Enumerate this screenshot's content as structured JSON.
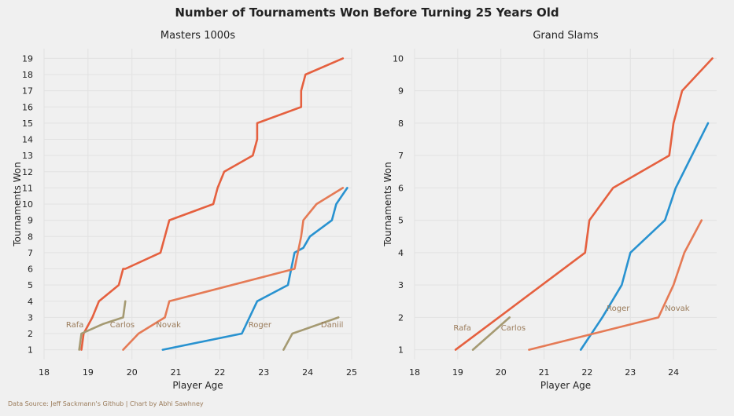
{
  "title": "Number of Tournaments Won Before Turning 25 Years Old",
  "source": "Data Source: Jeff Sackmann's Github | Chart by Abhi Sawhney",
  "colors": {
    "background": "#f0f0f0",
    "grid": "#e2e2e2",
    "annotation": "#9a7b5a"
  },
  "chart_data": [
    {
      "type": "line",
      "title": "Masters 1000s",
      "xlabel": "Player Age",
      "ylabel": "Tournaments Won",
      "xlim": [
        18,
        25
      ],
      "ylim": [
        0.4,
        19.6
      ],
      "xticks": [
        18,
        19,
        20,
        21,
        22,
        23,
        24,
        25
      ],
      "yticks": [
        1,
        2,
        3,
        4,
        5,
        6,
        7,
        8,
        9,
        10,
        11,
        12,
        13,
        14,
        15,
        16,
        17,
        18,
        19
      ],
      "grid": true,
      "series": [
        {
          "name": "Rafa",
          "color": "#e5603f",
          "points": [
            [
              18.85,
              1
            ],
            [
              18.9,
              2
            ],
            [
              19.1,
              3
            ],
            [
              19.25,
              4
            ],
            [
              19.7,
              5
            ],
            [
              19.8,
              6
            ],
            [
              19.85,
              6
            ],
            [
              20.65,
              7
            ],
            [
              20.85,
              9
            ],
            [
              21.85,
              10
            ],
            [
              21.95,
              11
            ],
            [
              22.1,
              12
            ],
            [
              22.75,
              13
            ],
            [
              22.85,
              14
            ],
            [
              22.85,
              15
            ],
            [
              23.85,
              16
            ],
            [
              23.85,
              17
            ],
            [
              23.95,
              18
            ],
            [
              24.8,
              19
            ]
          ]
        },
        {
          "name": "Roger",
          "color": "#2892d0",
          "points": [
            [
              20.7,
              1
            ],
            [
              22.5,
              2
            ],
            [
              22.85,
              4
            ],
            [
              23.55,
              5
            ],
            [
              23.7,
              7
            ],
            [
              23.9,
              7.3
            ],
            [
              24.05,
              8
            ],
            [
              24.55,
              9
            ],
            [
              24.65,
              10
            ],
            [
              24.9,
              11
            ]
          ]
        },
        {
          "name": "Novak",
          "color": "#e57a55",
          "points": [
            [
              19.8,
              1
            ],
            [
              20.15,
              2
            ],
            [
              20.75,
              3
            ],
            [
              20.85,
              4
            ],
            [
              23.7,
              6
            ],
            [
              23.85,
              8
            ],
            [
              23.9,
              9
            ],
            [
              24.2,
              10
            ],
            [
              24.8,
              11
            ]
          ]
        },
        {
          "name": "Carlos",
          "color": "#a59a72",
          "points": [
            [
              19.1,
              2.3
            ],
            [
              19.35,
              2.6
            ],
            [
              19.8,
              3
            ],
            [
              19.85,
              4
            ]
          ]
        },
        {
          "name": "Daniil",
          "color": "#a59a72",
          "points": [
            [
              23.45,
              1
            ],
            [
              23.65,
              2
            ],
            [
              24.7,
              3
            ]
          ]
        },
        {
          "name": "Carlos",
          "color": "#a59a72",
          "points": [
            [
              18.8,
              1
            ],
            [
              18.85,
              2
            ],
            [
              19.1,
              2.3
            ]
          ]
        }
      ],
      "annotations": [
        {
          "text": "Rafa",
          "x": 18.5,
          "y": 2.4
        },
        {
          "text": "Carlos",
          "x": 19.5,
          "y": 2.4
        },
        {
          "text": "Novak",
          "x": 20.55,
          "y": 2.4
        },
        {
          "text": "Roger",
          "x": 22.65,
          "y": 2.4
        },
        {
          "text": "Daniil",
          "x": 24.3,
          "y": 2.4
        }
      ]
    },
    {
      "type": "line",
      "title": "Grand Slams",
      "xlabel": "Player Age",
      "ylabel": "Tournaments Won",
      "xlim": [
        18,
        25
      ],
      "ylim": [
        0.7,
        10.3
      ],
      "xticks": [
        18,
        19,
        20,
        21,
        22,
        23,
        24
      ],
      "yticks": [
        1,
        2,
        3,
        4,
        5,
        6,
        7,
        8,
        9,
        10
      ],
      "grid": true,
      "series": [
        {
          "name": "Rafa",
          "color": "#e5603f",
          "points": [
            [
              18.95,
              1
            ],
            [
              21.95,
              4
            ],
            [
              22.05,
              5
            ],
            [
              22.6,
              6
            ],
            [
              23.9,
              7
            ],
            [
              24.0,
              8
            ],
            [
              24.2,
              9
            ],
            [
              24.9,
              10
            ]
          ]
        },
        {
          "name": "Roger",
          "color": "#2892d0",
          "points": [
            [
              21.85,
              1
            ],
            [
              22.35,
              2
            ],
            [
              22.8,
              3
            ],
            [
              23.0,
              4
            ],
            [
              23.8,
              5
            ],
            [
              24.05,
              6
            ],
            [
              24.8,
              8
            ]
          ]
        },
        {
          "name": "Novak",
          "color": "#e57a55",
          "points": [
            [
              20.65,
              1
            ],
            [
              23.65,
              2
            ],
            [
              24.0,
              3
            ],
            [
              24.25,
              4
            ],
            [
              24.65,
              5
            ]
          ]
        },
        {
          "name": "Carlos",
          "color": "#a59a72",
          "points": [
            [
              19.35,
              1
            ],
            [
              20.2,
              2
            ]
          ]
        }
      ],
      "annotations": [
        {
          "text": "Rafa",
          "x": 18.9,
          "y": 1.6
        },
        {
          "text": "Carlos",
          "x": 20.0,
          "y": 1.6
        },
        {
          "text": "Roger",
          "x": 22.45,
          "y": 2.2
        },
        {
          "text": "Novak",
          "x": 23.8,
          "y": 2.2
        }
      ]
    }
  ]
}
